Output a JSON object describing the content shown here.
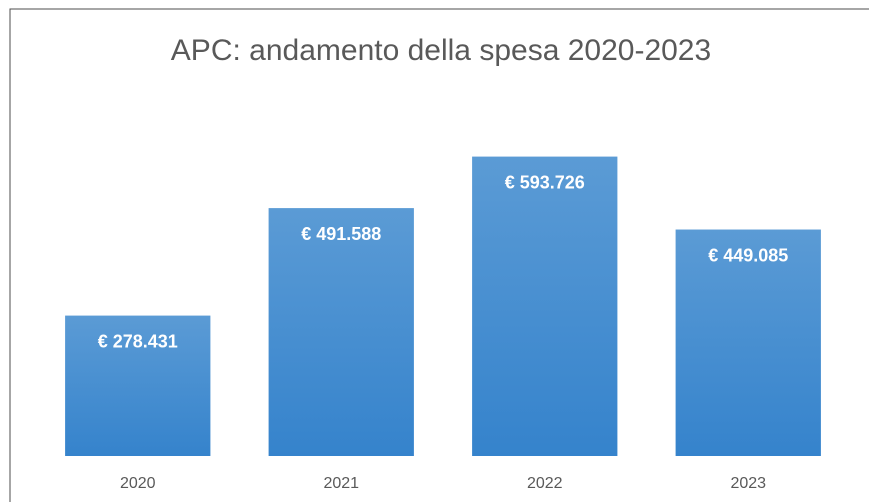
{
  "chart_data": {
    "type": "bar",
    "title": "APC: andamento della spesa 2020-2023",
    "categories": [
      "2020",
      "2021",
      "2022",
      "2023"
    ],
    "values": [
      278431,
      491588,
      593726,
      449085
    ],
    "value_labels": [
      "€ 278.431",
      "€ 491.588",
      "€ 593.726",
      "€ 449.085"
    ],
    "color": "#4a8fd3",
    "ylim": [
      0,
      700000
    ]
  }
}
